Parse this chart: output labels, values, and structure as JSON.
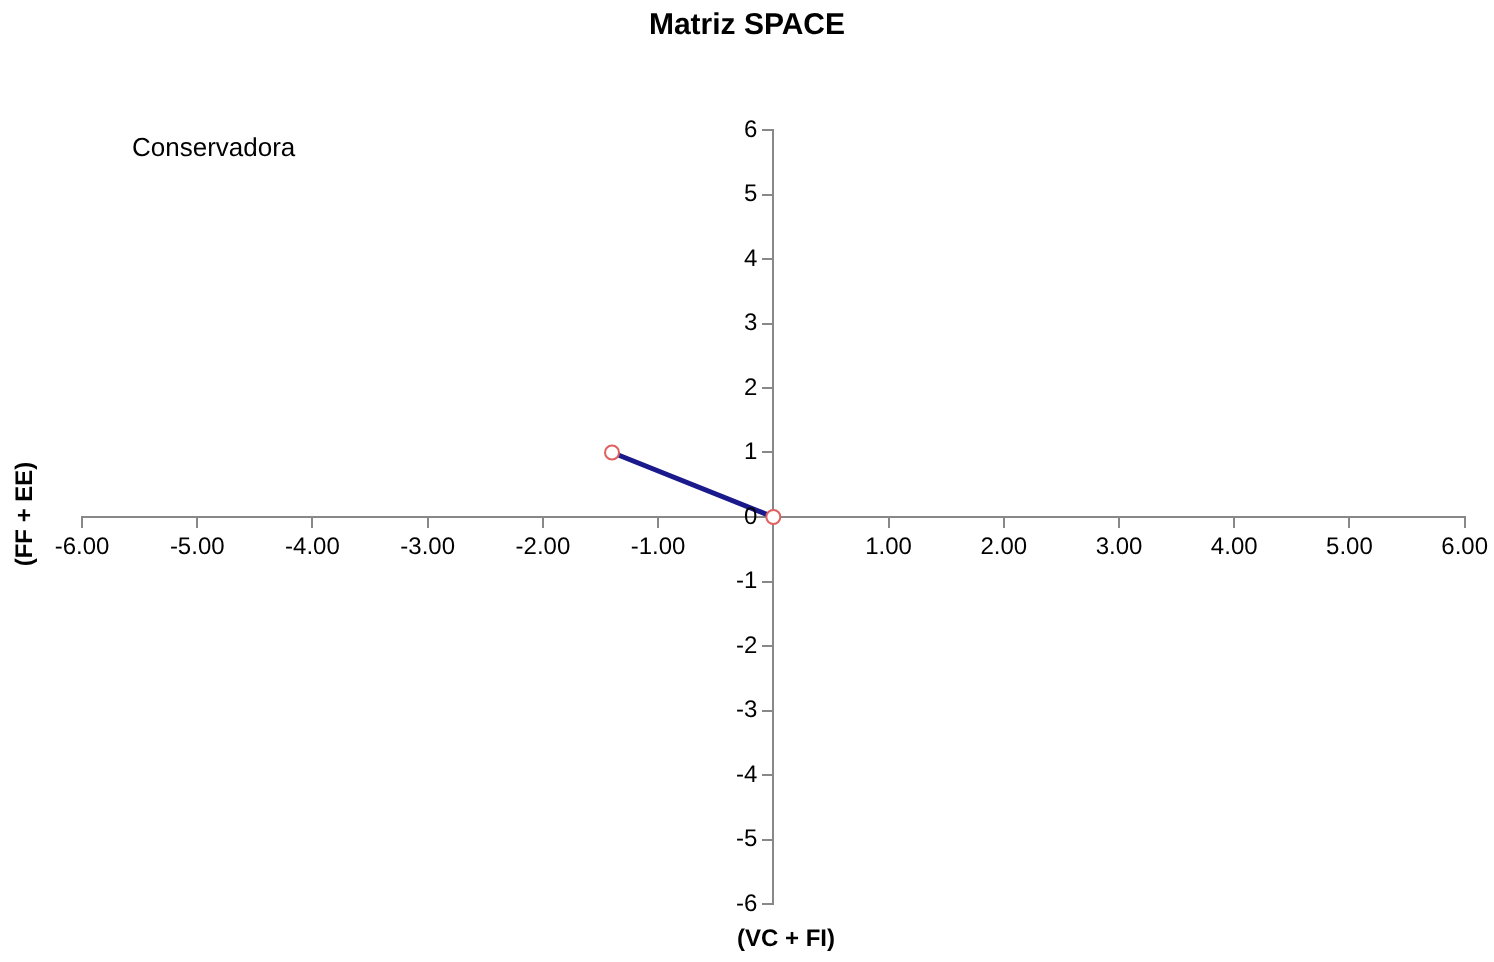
{
  "chart_data": {
    "type": "line",
    "title": "Matriz SPACE",
    "xlabel": "(VC + FI)",
    "ylabel": "(FF + EE)",
    "annotations": [
      "Conservadora"
    ],
    "x": [
      -1.4,
      0
    ],
    "series": [
      {
        "color": "#1a1a8c",
        "values": [
          1.0,
          0
        ]
      }
    ],
    "xlim": [
      -6,
      6
    ],
    "xticks": [
      {
        "value": -6,
        "label": "-6.00"
      },
      {
        "value": -5,
        "label": "-5.00"
      },
      {
        "value": -4,
        "label": "-4.00"
      },
      {
        "value": -3,
        "label": "-3.00"
      },
      {
        "value": -2,
        "label": "-2.00"
      },
      {
        "value": -1,
        "label": "-1.00"
      },
      {
        "value": 0,
        "label": null
      },
      {
        "value": 1,
        "label": "1.00"
      },
      {
        "value": 2,
        "label": "2.00"
      },
      {
        "value": 3,
        "label": "3.00"
      },
      {
        "value": 4,
        "label": "4.00"
      },
      {
        "value": 5,
        "label": "5.00"
      },
      {
        "value": 6,
        "label": "6.00"
      }
    ],
    "ylim": [
      -6,
      6
    ],
    "yticks": [
      -6,
      -5,
      -4,
      -3,
      -2,
      -1,
      0,
      1,
      2,
      3,
      4,
      5,
      6
    ],
    "grid": false,
    "legend": false,
    "marker": "circle",
    "line_style": "solid"
  }
}
